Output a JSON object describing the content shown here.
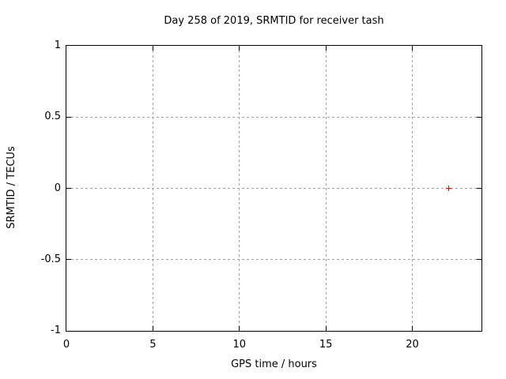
{
  "chart_data": {
    "type": "scatter",
    "title": "Day 258 of 2019, SRMTID for receiver tash",
    "xlabel": "GPS time / hours",
    "ylabel": "SRMTID / TECUs",
    "xlim": [
      0,
      24
    ],
    "ylim": [
      -1,
      1
    ],
    "xticks": [
      {
        "value": 0,
        "label": "0"
      },
      {
        "value": 5,
        "label": "5"
      },
      {
        "value": 10,
        "label": "10"
      },
      {
        "value": 15,
        "label": "15"
      },
      {
        "value": 20,
        "label": "20"
      }
    ],
    "yticks": [
      {
        "value": -1,
        "label": "-1"
      },
      {
        "value": -0.5,
        "label": "-0.5"
      },
      {
        "value": 0,
        "label": "0"
      },
      {
        "value": 0.5,
        "label": "0.5"
      },
      {
        "value": 1,
        "label": "1"
      }
    ],
    "grid": true,
    "grid_style": "dashed",
    "tick_style": "inward-mirrored",
    "legend": "none",
    "series": [
      {
        "name": "SRMTID",
        "marker": "plus",
        "color": "#ff0000",
        "points": [
          {
            "x": 22.1,
            "y": 0.0
          }
        ]
      }
    ],
    "colors": {
      "background": "#ffffff",
      "axis": "#000000",
      "text": "#000000",
      "grid": "#a0a0a0",
      "marker": "#ff0000"
    }
  }
}
